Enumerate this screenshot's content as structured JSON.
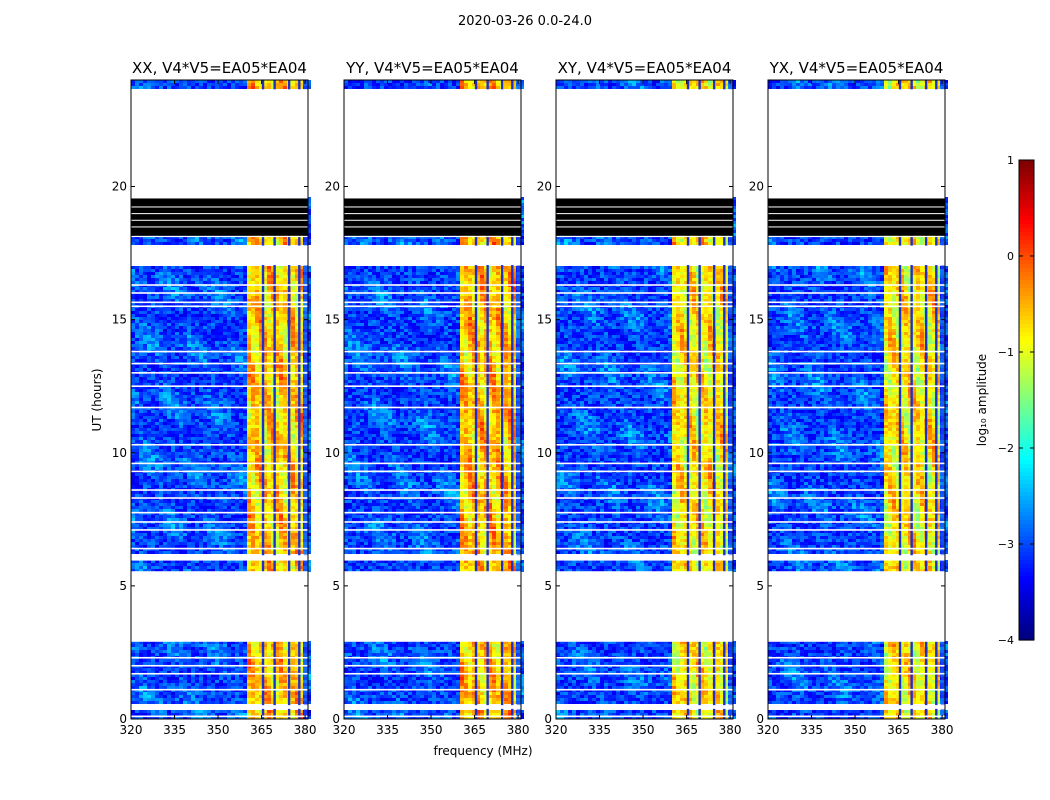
{
  "chart_data": {
    "type": "heatmap",
    "title": "2020-03-26 0.0-24.0",
    "xlabel": "frequency (MHz)",
    "ylabel": "UT (hours)",
    "xlim": [
      320,
      381
    ],
    "ylim": [
      0,
      24
    ],
    "x_ticks": [
      320,
      335,
      350,
      365,
      380
    ],
    "y_ticks": [
      0,
      5,
      10,
      15,
      20
    ],
    "panels": [
      {
        "title": "XX, V4*V5=EA05*EA04",
        "band_strength": 0.78
      },
      {
        "title": "YY, V4*V5=EA05*EA04",
        "band_strength": 0.86
      },
      {
        "title": "XY, V4*V5=EA05*EA04",
        "band_strength": 0.62
      },
      {
        "title": "YX, V4*V5=EA05*EA04",
        "band_strength": 0.6
      }
    ],
    "data_gaps_hours": [
      [
        0.38,
        0.52
      ],
      [
        2.9,
        5.55
      ],
      [
        5.95,
        6.15
      ],
      [
        17.05,
        17.78
      ],
      [
        18.1,
        18.15
      ],
      [
        19.55,
        23.65
      ]
    ],
    "saturated_block_hours": [
      18.15,
      19.55
    ],
    "flag_lines_hours": [
      0.1,
      1.1,
      1.7,
      2.0,
      2.3,
      6.4,
      7.1,
      7.4,
      7.75,
      8.3,
      8.6,
      9.3,
      9.6,
      10.3,
      11.7,
      12.5,
      13.0,
      13.35,
      13.8,
      15.5,
      15.65,
      16.0,
      16.3
    ],
    "bright_band_mhz": [
      360.5,
      379.5
    ],
    "channel_gaps_mhz": [
      365.5,
      369.5,
      374.5,
      378.0
    ],
    "colorbar": {
      "label": "log₁₀ amplitude",
      "ticks": [
        1,
        0,
        -1,
        -2,
        -3,
        -4
      ],
      "range": [
        -4,
        1
      ]
    }
  }
}
